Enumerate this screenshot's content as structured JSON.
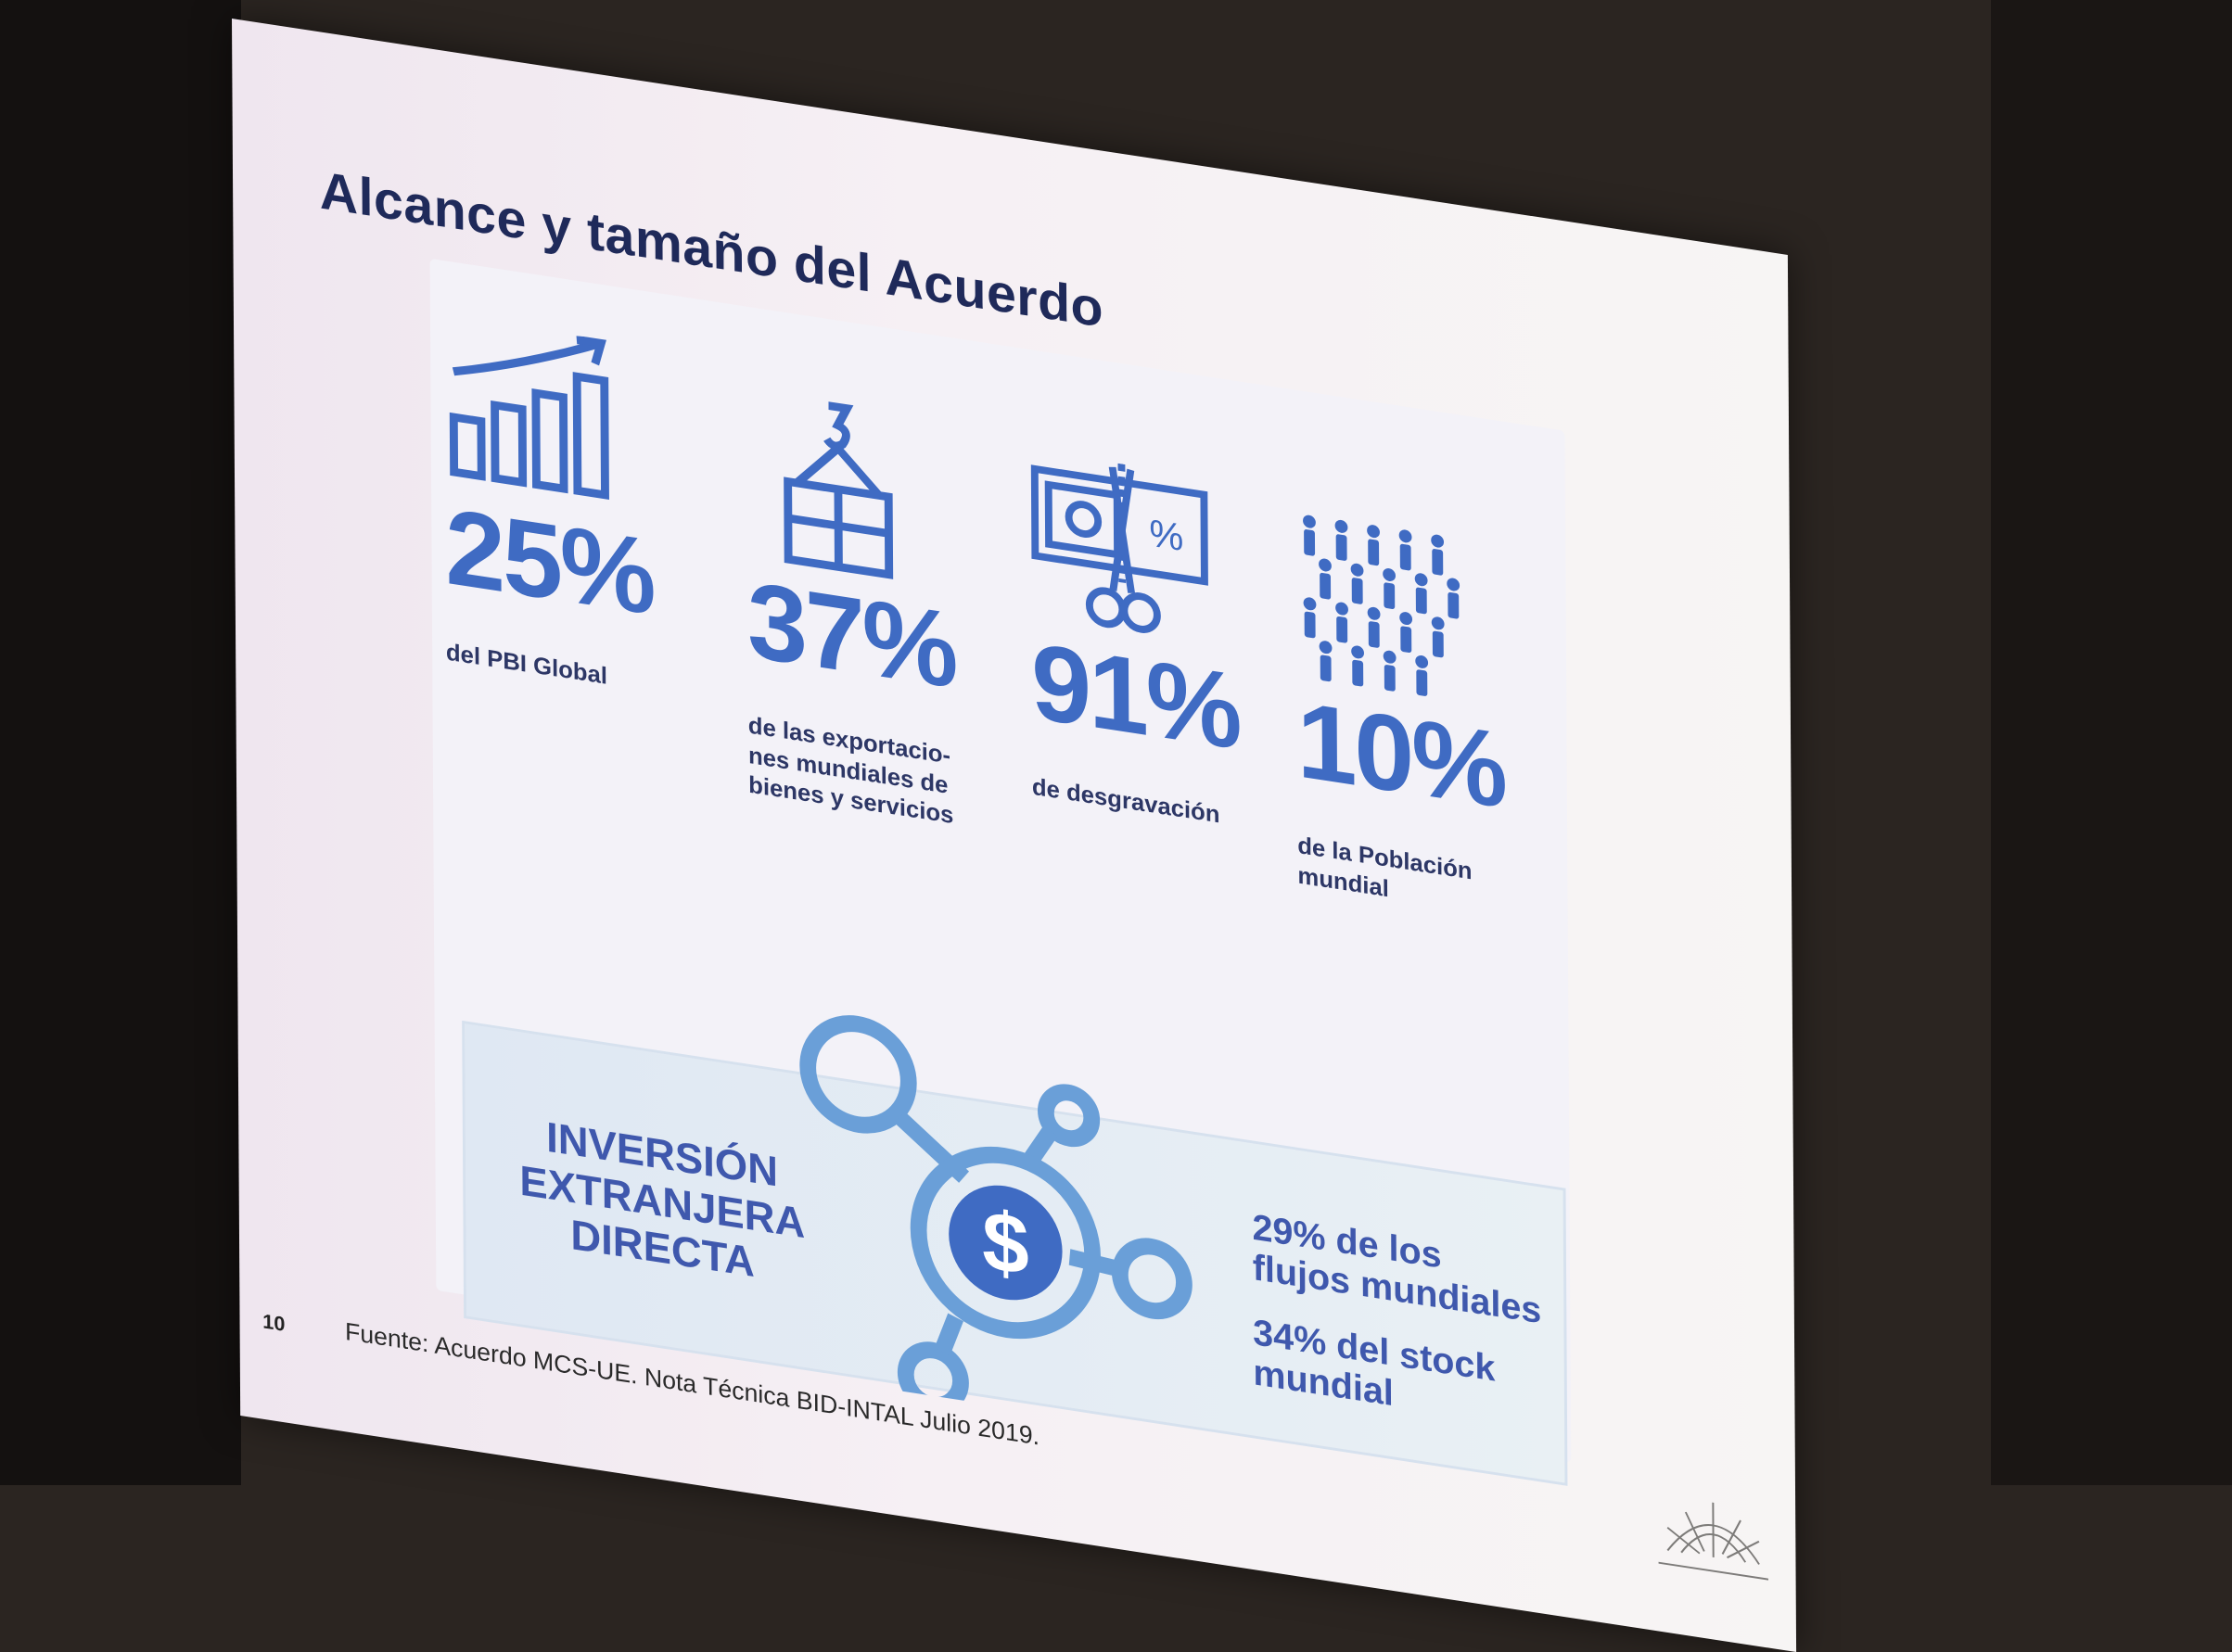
{
  "slide": {
    "title": "Alcance y tamaño del Acuerdo",
    "page_number": "10",
    "source": "Fuente: Acuerdo MCS-UE. Nota Técnica BID-INTAL Julio 2019."
  },
  "stats": [
    {
      "icon": "growth-bar-chart-icon",
      "value": "25%",
      "description": "del PBI Global"
    },
    {
      "icon": "crane-hook-package-icon",
      "value": "37%",
      "description": "de las exportacio-\nnes mundiales de\nbienes y servicios"
    },
    {
      "icon": "scissors-cut-banknote-icon",
      "value": "91%",
      "description": "de desgravación"
    },
    {
      "icon": "population-crowd-icon",
      "value": "10%",
      "description": "de la Población\nmundial"
    }
  ],
  "ied": {
    "title": "INVERSIÓN\nEXTRANJERA\nDIRECTA",
    "icon": "dollar-network-icon",
    "flows": "29% de los\nflujos mundiales",
    "stock": "34% del stock\nmundial"
  },
  "logo": {
    "icon": "ministry-sun-logo-icon"
  },
  "colors": {
    "accent_blue": "#3f6bc3",
    "title_navy": "#1f2a5a",
    "ied_blue": "#3f58ad"
  }
}
